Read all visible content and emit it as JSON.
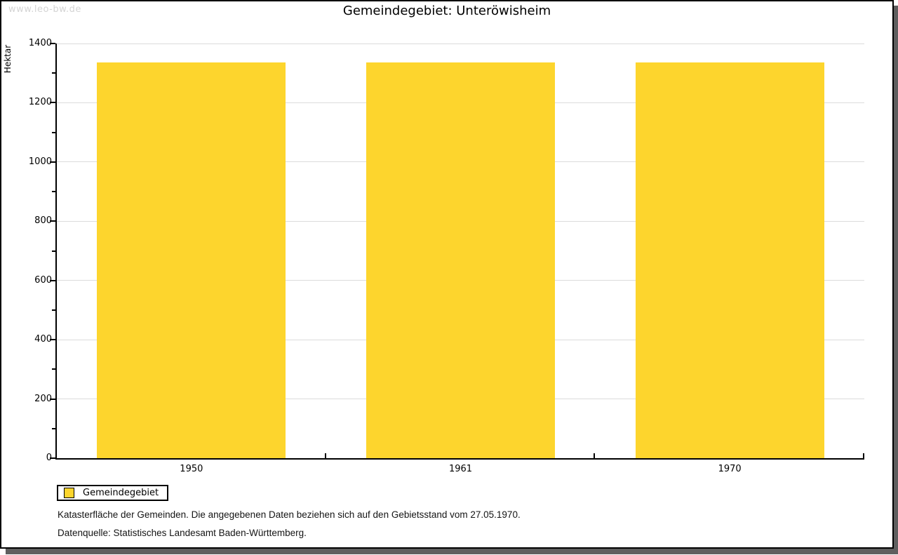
{
  "watermark": "www.leo-bw.de",
  "title": "Gemeindegebiet: Unteröwisheim",
  "chart_data": {
    "type": "bar",
    "title": "Gemeindegebiet: Unteröwisheim",
    "categories": [
      "1950",
      "1961",
      "1970"
    ],
    "series": [
      {
        "name": "Gemeindegebiet",
        "values": [
          1337,
          1337,
          1337
        ]
      }
    ],
    "xlabel": "",
    "ylabel": "Hektar",
    "ylim": [
      0,
      1400
    ],
    "ytick_step": 200,
    "minor_tick_step": 100,
    "grid": true,
    "legend_position": "bottom-left",
    "bar_color": "#FDD52D"
  },
  "legend": {
    "items": [
      {
        "label": "Gemeindegebiet",
        "color": "#FDD52D"
      }
    ]
  },
  "footnotes": [
    "Katasterfläche der Gemeinden. Die angegebenen Daten beziehen sich auf den Gebietsstand vom 27.05.1970.",
    "Datenquelle: Statistisches Landesamt Baden-Württemberg."
  ],
  "colors": {
    "bar": "#FDD52D",
    "gridline": "#dcdcdc",
    "watermark": "#d4d4d4",
    "frame_shadow": "#5f5f5f"
  }
}
